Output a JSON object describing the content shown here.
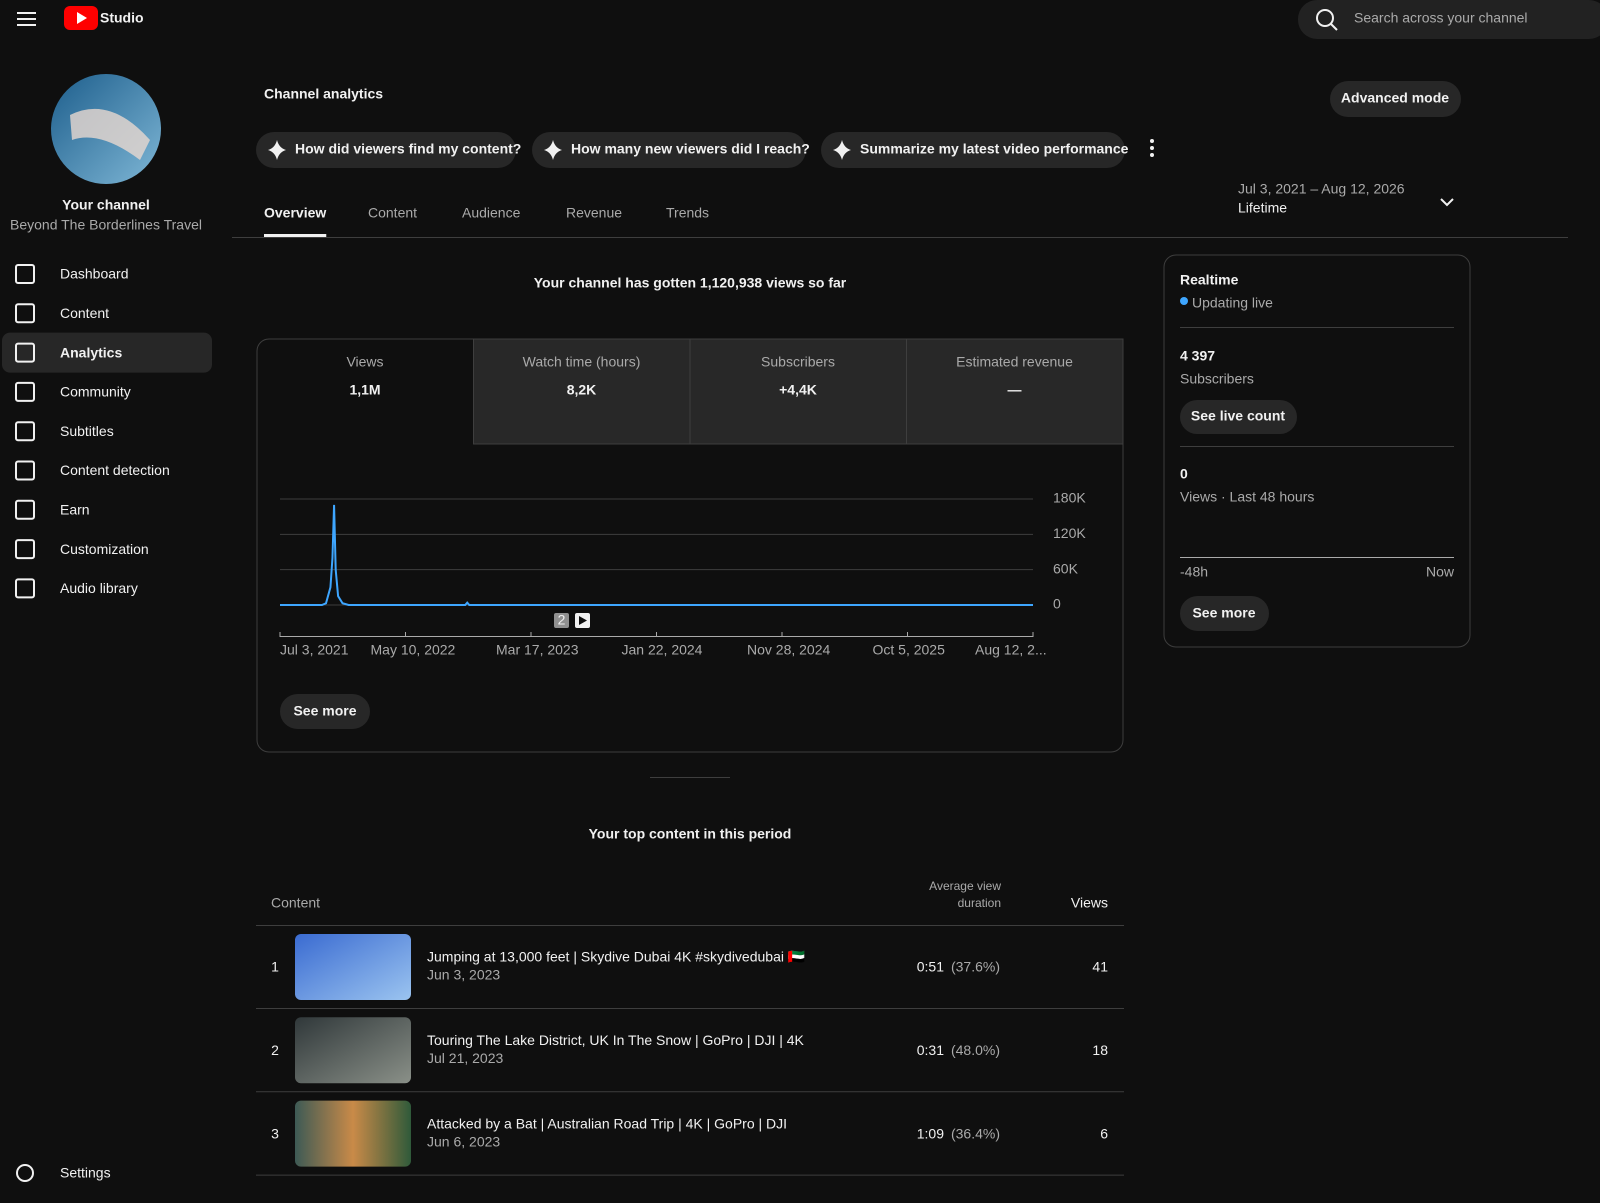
{
  "header": {
    "logo": "Studio",
    "search_placeholder": "Search across your channel"
  },
  "sidebar": {
    "channel_label": "Your channel",
    "channel_name": "Beyond The Borderlines Travel",
    "nav": [
      "Dashboard",
      "Content",
      "Analytics",
      "Community",
      "Subtitles",
      "Content detection",
      "Earn",
      "Customization",
      "Audio library"
    ],
    "active": "Analytics",
    "settings": "Settings"
  },
  "title": "Channel analytics",
  "advanced_mode": "Advanced mode",
  "prompts": [
    "How did viewers find my content?",
    "How many new viewers did I reach?",
    "Summarize my latest video performance"
  ],
  "tabs": [
    "Overview",
    "Content",
    "Audience",
    "Revenue",
    "Trends"
  ],
  "active_tab": "Overview",
  "date_range": {
    "dates": "Jul 3, 2021 – Aug 12, 2026",
    "period": "Lifetime"
  },
  "headline": "Your channel has gotten 1,120,938 views so far",
  "metrics": [
    {
      "label": "Views",
      "value": "1,1M"
    },
    {
      "label": "Watch time (hours)",
      "value": "8,2K"
    },
    {
      "label": "Subscribers",
      "value": "+4,4K"
    },
    {
      "label": "Estimated revenue",
      "value": "—"
    }
  ],
  "chart_data": {
    "type": "line",
    "x": [
      "2021-07-03",
      "2021-10-15",
      "2021-10-25",
      "2021-11-05",
      "2021-11-10",
      "2021-11-14",
      "2021-11-18",
      "2021-11-24",
      "2021-12-05",
      "2021-12-20",
      "2022-10-05",
      "2022-10-10",
      "2022-10-15",
      "2026-08-12"
    ],
    "series": [
      {
        "name": "Views",
        "color": "#3ea6ff",
        "values": [
          0,
          0,
          3000,
          30000,
          80000,
          170000,
          60000,
          15000,
          3000,
          0,
          0,
          4000,
          0,
          0
        ]
      }
    ],
    "xlim": [
      "2021-07-03",
      "2026-08-12"
    ],
    "xticks": [
      {
        "value": "2021-07-03",
        "label": "Jul 3, 2021"
      },
      {
        "value": "2022-05-10",
        "label": "May 10, 2022"
      },
      {
        "value": "2023-03-17",
        "label": "Mar 17, 2023"
      },
      {
        "value": "2024-01-22",
        "label": "Jan 22, 2024"
      },
      {
        "value": "2024-11-28",
        "label": "Nov 28, 2024"
      },
      {
        "value": "2025-10-05",
        "label": "Oct 5, 2025"
      },
      {
        "value": "2026-08-12",
        "label": "Aug 12, 2..."
      }
    ],
    "ylim": [
      0,
      180000
    ],
    "yticks": [
      0,
      {
        "value": 60000,
        "label": "60K"
      },
      {
        "value": 120000,
        "label": "120K"
      },
      {
        "value": 180000,
        "label": "180K"
      }
    ],
    "grid": true,
    "marker": "2"
  },
  "see_more": "See more",
  "top_content": {
    "title": "Your top content in this period",
    "columns": [
      "Content",
      "Average view duration",
      "Views"
    ],
    "rows": [
      {
        "rank": 1,
        "title": "Jumping at 13,000 feet | Skydive Dubai 4K #skydivedubai 🇦🇪",
        "date": "Jun 3, 2023",
        "duration": "0:51",
        "percent": "(37.6%)",
        "views": 41
      },
      {
        "rank": 2,
        "title": "Touring The Lake District, UK In The Snow | GoPro | DJI | 4K",
        "date": "Jul 21, 2023",
        "duration": "0:31",
        "percent": "(48.0%)",
        "views": 18
      },
      {
        "rank": 3,
        "title": "Attacked by a Bat | Australian Road Trip | 4K | GoPro | DJI",
        "date": "Jun 6, 2023",
        "duration": "1:09",
        "percent": "(36.4%)",
        "views": 6
      }
    ]
  },
  "realtime": {
    "title": "Realtime",
    "status": "Updating live",
    "subscribers": "4 397",
    "subscribers_label": "Subscribers",
    "live_count": "See live count",
    "views": 0,
    "views_label": "Views · Last 48 hours",
    "axis": [
      "-48h",
      "Now"
    ],
    "see_more": "See more"
  }
}
